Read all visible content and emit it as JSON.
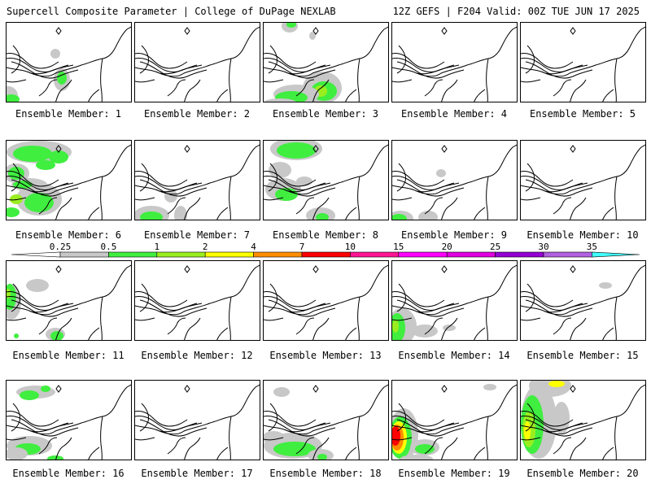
{
  "header": {
    "left": "Supercell Composite Parameter | College of DuPage NEXLAB",
    "right": "12Z GEFS | F204 Valid: 00Z TUE JUN 17 2025"
  },
  "members": [
    {
      "label": "Ensemble Member: 1"
    },
    {
      "label": "Ensemble Member: 2"
    },
    {
      "label": "Ensemble Member: 3"
    },
    {
      "label": "Ensemble Member: 4"
    },
    {
      "label": "Ensemble Member: 5"
    },
    {
      "label": "Ensemble Member: 6"
    },
    {
      "label": "Ensemble Member: 7"
    },
    {
      "label": "Ensemble Member: 8"
    },
    {
      "label": "Ensemble Member: 9"
    },
    {
      "label": "Ensemble Member: 10"
    },
    {
      "label": "Ensemble Member: 11"
    },
    {
      "label": "Ensemble Member: 12"
    },
    {
      "label": "Ensemble Member: 13"
    },
    {
      "label": "Ensemble Member: 14"
    },
    {
      "label": "Ensemble Member: 15"
    },
    {
      "label": "Ensemble Member: 16"
    },
    {
      "label": "Ensemble Member: 17"
    },
    {
      "label": "Ensemble Member: 18"
    },
    {
      "label": "Ensemble Member: 19"
    },
    {
      "label": "Ensemble Member: 20"
    }
  ],
  "colorbar": {
    "ticks": [
      "0.25",
      "0.5",
      "1",
      "2",
      "4",
      "7",
      "10",
      "15",
      "20",
      "25",
      "30",
      "35"
    ],
    "colors": [
      "#c8c8c8",
      "#40ee40",
      "#9aee20",
      "#ffff00",
      "#ff8c00",
      "#ff0000",
      "#ff1493",
      "#ff00ff",
      "#e000e0",
      "#9400d3",
      "#b060e0",
      "#40ffff"
    ]
  },
  "colors": {
    "gray": "#c8c8c8",
    "green": "#40ee40",
    "lime": "#9aee20",
    "yellow": "#ffff00",
    "orange": "#ff8c00",
    "red": "#ff0000"
  }
}
